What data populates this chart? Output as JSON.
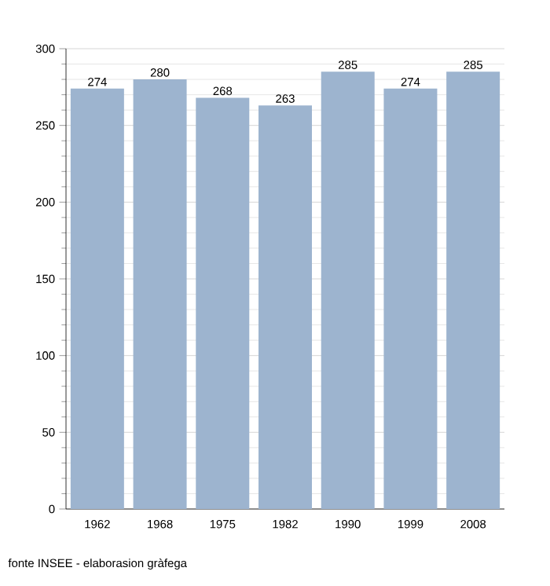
{
  "chart_data": {
    "type": "bar",
    "categories": [
      "1962",
      "1968",
      "1975",
      "1982",
      "1990",
      "1999",
      "2008"
    ],
    "values": [
      274,
      280,
      268,
      263,
      285,
      274,
      285
    ],
    "color": "#9db4cf",
    "ylim": [
      0,
      300
    ],
    "yticks": [
      0,
      50,
      100,
      150,
      200,
      250,
      300
    ],
    "grid": "y",
    "data_labels": true,
    "annotations": [
      "fonte INSEE - elaborasion gràfega"
    ]
  }
}
